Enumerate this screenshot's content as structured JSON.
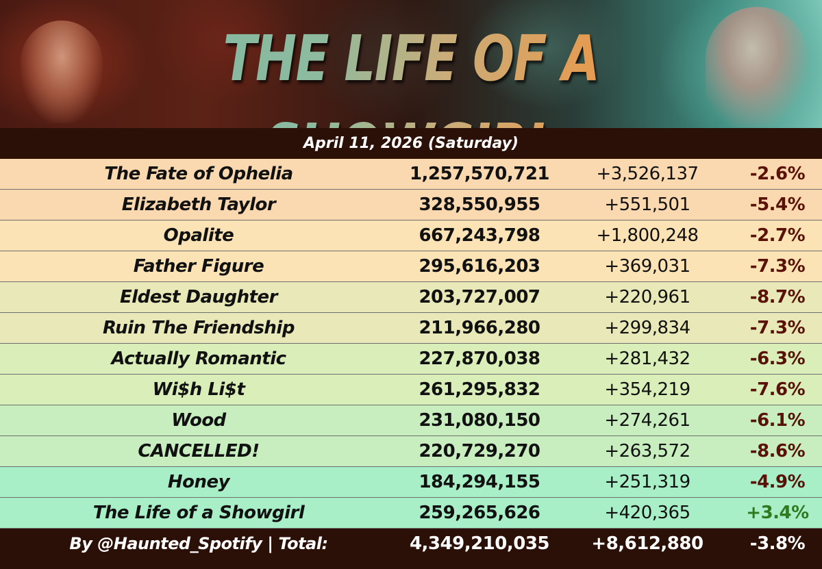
{
  "banner": {
    "title": "THE LIFE OF A SHOWGIRL"
  },
  "date_label": "April 11, 2026 (Saturday)",
  "colors": {
    "header_bg": "#2b1008",
    "negative": "#5a1208",
    "positive": "#2f7a1e"
  },
  "rows": [
    {
      "song": "The Fate of Ophelia",
      "total": "1,257,570,721",
      "daily": "+3,526,137",
      "change": "-2.6%",
      "bg": "#fbd9b0"
    },
    {
      "song": "Elizabeth Taylor",
      "total": "328,550,955",
      "daily": "+551,501",
      "change": "-5.4%",
      "bg": "#fbd9b0"
    },
    {
      "song": "Opalite",
      "total": "667,243,798",
      "daily": "+1,800,248",
      "change": "-2.7%",
      "bg": "#fce3b6"
    },
    {
      "song": "Father Figure",
      "total": "295,616,203",
      "daily": "+369,031",
      "change": "-7.3%",
      "bg": "#fce3b6"
    },
    {
      "song": "Eldest Daughter",
      "total": "203,727,007",
      "daily": "+220,961",
      "change": "-8.7%",
      "bg": "#e8e8b8"
    },
    {
      "song": "Ruin The Friendship",
      "total": "211,966,280",
      "daily": "+299,834",
      "change": "-7.3%",
      "bg": "#e8e8b8"
    },
    {
      "song": "Actually Romantic",
      "total": "227,870,038",
      "daily": "+281,432",
      "change": "-6.3%",
      "bg": "#d9eeb8"
    },
    {
      "song": "Wi$h Li$t",
      "total": "261,295,832",
      "daily": "+354,219",
      "change": "-7.6%",
      "bg": "#d9eeb8"
    },
    {
      "song": "Wood",
      "total": "231,080,150",
      "daily": "+274,261",
      "change": "-6.1%",
      "bg": "#c8eec0"
    },
    {
      "song": "CANCELLED!",
      "total": "220,729,270",
      "daily": "+263,572",
      "change": "-8.6%",
      "bg": "#c8eec0"
    },
    {
      "song": "Honey",
      "total": "184,294,155",
      "daily": "+251,319",
      "change": "-4.9%",
      "bg": "#a8efc8"
    },
    {
      "song": "The Life of a Showgirl",
      "total": "259,265,626",
      "daily": "+420,365",
      "change": "+3.4%",
      "bg": "#a8efc8"
    }
  ],
  "footer": {
    "label": "By @Haunted_Spotify | Total:",
    "total": "4,349,210,035",
    "daily": "+8,612,880",
    "change": "-3.8%"
  }
}
